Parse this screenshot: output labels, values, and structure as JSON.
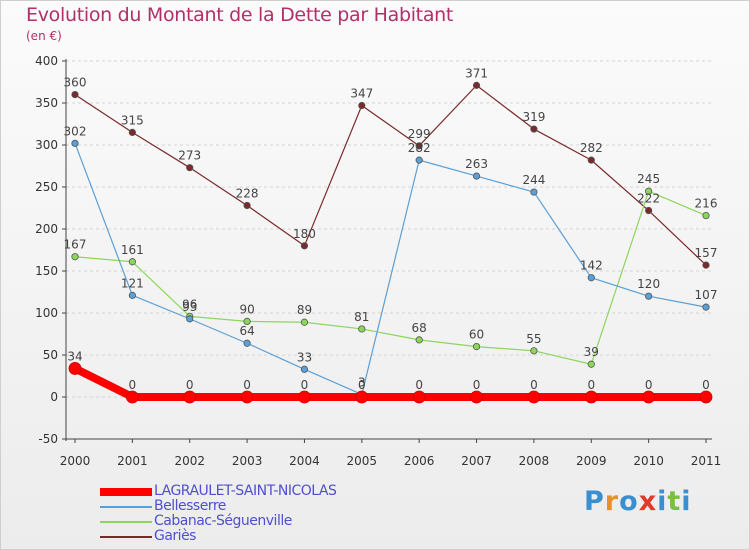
{
  "header": {
    "title": "Evolution du Montant de la Dette par Habitant",
    "subtitle": "(en €)"
  },
  "brand": {
    "letters": [
      "P",
      "r",
      "o",
      "x",
      "i",
      "t",
      "i"
    ],
    "colors": [
      "#3a8fd0",
      "#e8902a",
      "#3a8fd0",
      "#e03a2a",
      "#3a8fd0",
      "#7bbf3a",
      "#3a8fd0"
    ]
  },
  "chart_data": {
    "type": "line",
    "title": "Evolution du Montant de la Dette par Habitant",
    "ylabel": "(en €)",
    "xlabel": "",
    "x": [
      "2000",
      "2001",
      "2002",
      "2003",
      "2004",
      "2005",
      "2006",
      "2007",
      "2008",
      "2009",
      "2010",
      "2011"
    ],
    "ylim": [
      -50,
      400
    ],
    "yticks": [
      "-50",
      "0",
      "50",
      "100",
      "150",
      "200",
      "250",
      "300",
      "350",
      "400"
    ],
    "grid": true,
    "legend_position": "bottom",
    "series": [
      {
        "name": "LAGRAULET-SAINT-NICOLAS",
        "color": "#ff0000",
        "values": [
          34,
          0,
          0,
          0,
          0,
          0,
          0,
          0,
          0,
          0,
          0,
          0
        ],
        "labels": [
          "34",
          "0",
          "0",
          "0",
          "0",
          "0",
          "0",
          "0",
          "0",
          "0",
          "0",
          "0"
        ]
      },
      {
        "name": "Bellesserre",
        "color": "#5a9fd6",
        "values": [
          302,
          121,
          93,
          64,
          33,
          3,
          282,
          263,
          244,
          142,
          120,
          107
        ],
        "labels": [
          "302",
          "121",
          "93",
          "64",
          "33",
          "3",
          "282",
          "263",
          "244",
          "142",
          "120",
          "107"
        ]
      },
      {
        "name": "Cabanac-Séguenville",
        "color": "#8cd65a",
        "values": [
          167,
          161,
          96,
          90,
          89,
          81,
          68,
          60,
          55,
          39,
          245,
          216
        ],
        "labels": [
          "167",
          "161",
          "96",
          "90",
          "89",
          "81",
          "68",
          "60",
          "55",
          "39",
          "245",
          "216"
        ]
      },
      {
        "name": "Gariès",
        "color": "#7a2a2a",
        "values": [
          360,
          315,
          273,
          228,
          180,
          347,
          299,
          371,
          319,
          282,
          222,
          157
        ],
        "labels": [
          "360",
          "315",
          "273",
          "228",
          "180",
          "347",
          "299",
          "371",
          "319",
          "282",
          "222",
          "157"
        ]
      }
    ]
  }
}
